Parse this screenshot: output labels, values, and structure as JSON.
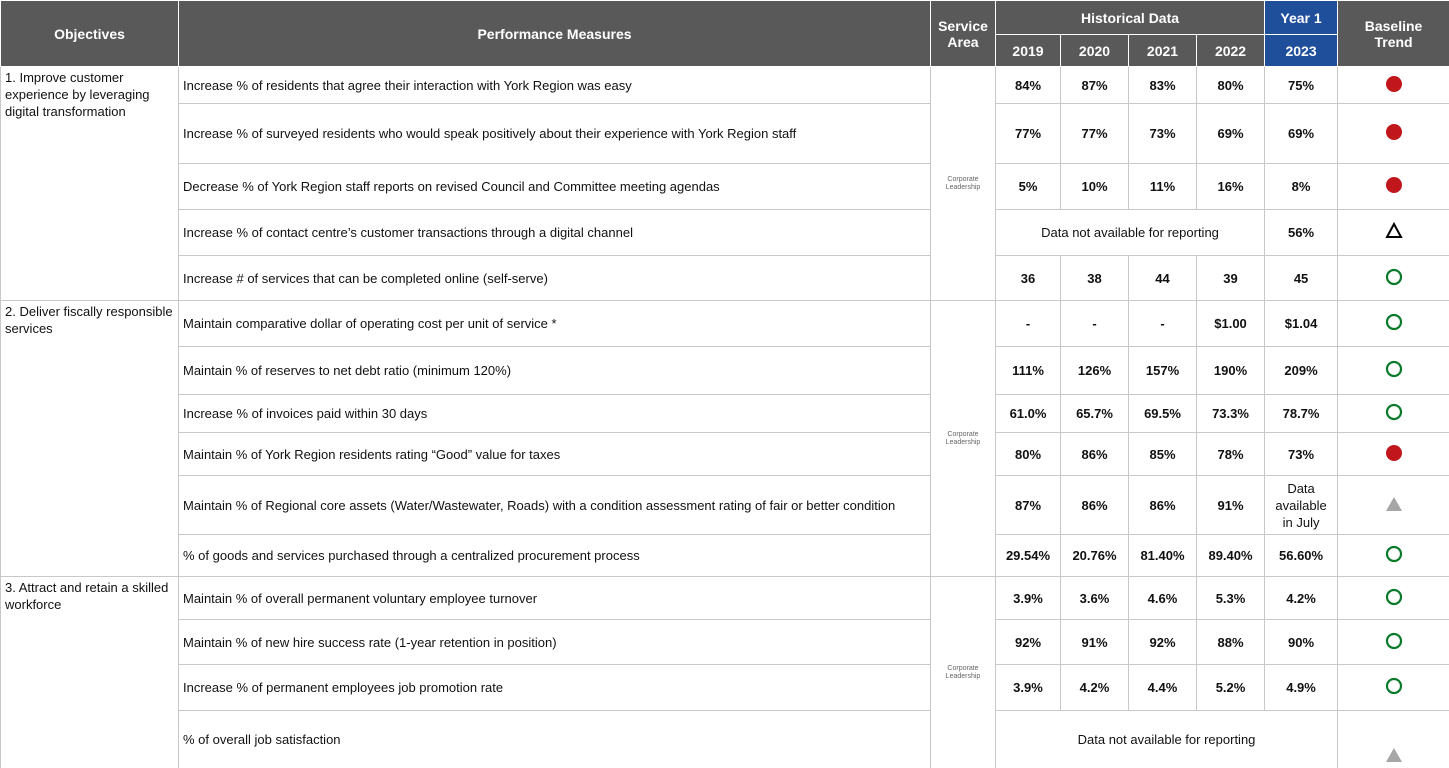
{
  "header": {
    "objectives": "Objectives",
    "measures": "Performance Measures",
    "service_area": "Service Area",
    "historical": "Historical Data",
    "years": [
      "2019",
      "2020",
      "2021",
      "2022"
    ],
    "year1": "Year 1",
    "year1_year": "2023",
    "baseline": "Baseline Trend"
  },
  "groups": [
    {
      "objective": "1. Improve customer experience by leveraging digital transformation",
      "service_area": "Corporate Leadership",
      "rows": [
        {
          "measure": "Increase % of residents that agree their interaction with York Region was easy",
          "historical": [
            "84%",
            "87%",
            "83%",
            "80%"
          ],
          "year1": "75%"
        },
        {
          "measure": "Increase % of surveyed residents who would speak positively about their experience with  York Region staff",
          "historical": [
            "77%",
            "77%",
            "73%",
            "69%"
          ],
          "year1": "69%"
        },
        {
          "measure": "Decrease % of York Region staff reports on revised Council and Committee meeting agendas",
          "historical": [
            "5%",
            "10%",
            "11%",
            "16%"
          ],
          "year1": "8%"
        },
        {
          "measure": "Increase % of contact centre’s customer transactions through a digital channel",
          "historical_note": "Data not available for reporting",
          "year1": "56%"
        },
        {
          "measure": "Increase # of services that can be completed online (self-serve)",
          "historical": [
            "36",
            "38",
            "44",
            "39"
          ],
          "year1": "45"
        }
      ]
    },
    {
      "objective": "2. Deliver fiscally responsible services",
      "service_area": "Corporate Leadership",
      "rows": [
        {
          "measure": "Maintain comparative dollar of operating cost per unit of service *",
          "historical": [
            "-",
            "-",
            "-",
            "$1.00"
          ],
          "year1": "$1.04"
        },
        {
          "measure": "Maintain % of reserves to net debt ratio (minimum 120%)",
          "historical": [
            "111%",
            "126%",
            "157%",
            "190%"
          ],
          "year1": "209%"
        },
        {
          "measure": "Increase % of invoices paid within 30 days",
          "historical": [
            "61.0%",
            "65.7%",
            "69.5%",
            "73.3%"
          ],
          "year1": "78.7%"
        },
        {
          "measure": "Maintain % of York Region residents rating “Good” value for taxes",
          "historical": [
            "80%",
            "86%",
            "85%",
            "78%"
          ],
          "year1": "73%"
        },
        {
          "measure": "Maintain % of Regional core assets (Water/Wastewater, Roads) with a condition assessment  rating of fair or better condition",
          "historical": [
            "87%",
            "86%",
            "86%",
            "91%"
          ],
          "year1": "Data available in July"
        },
        {
          "measure": "% of goods and services purchased through a centralized procurement process",
          "historical": [
            "29.54%",
            "20.76%",
            "81.40%",
            "89.40%"
          ],
          "year1": "56.60%"
        }
      ]
    },
    {
      "objective": "3. Attract and retain a skilled workforce",
      "service_area": "Corporate Leadership",
      "rows": [
        {
          "measure": "Maintain % of overall permanent voluntary employee turnover",
          "historical": [
            "3.9%",
            "3.6%",
            "4.6%",
            "5.3%"
          ],
          "year1": "4.2%"
        },
        {
          "measure": "Maintain % of new hire success rate (1-year retention in position)",
          "historical": [
            "92%",
            "91%",
            "92%",
            "88%"
          ],
          "year1": "90%"
        },
        {
          "measure": "Increase % of permanent employees job promotion rate",
          "historical": [
            "3.9%",
            "4.2%",
            "4.4%",
            "5.2%"
          ],
          "year1": "4.9%"
        },
        {
          "measure": "% of overall job satisfaction",
          "historical_note": "Data not available for reporting"
        }
      ]
    }
  ]
}
